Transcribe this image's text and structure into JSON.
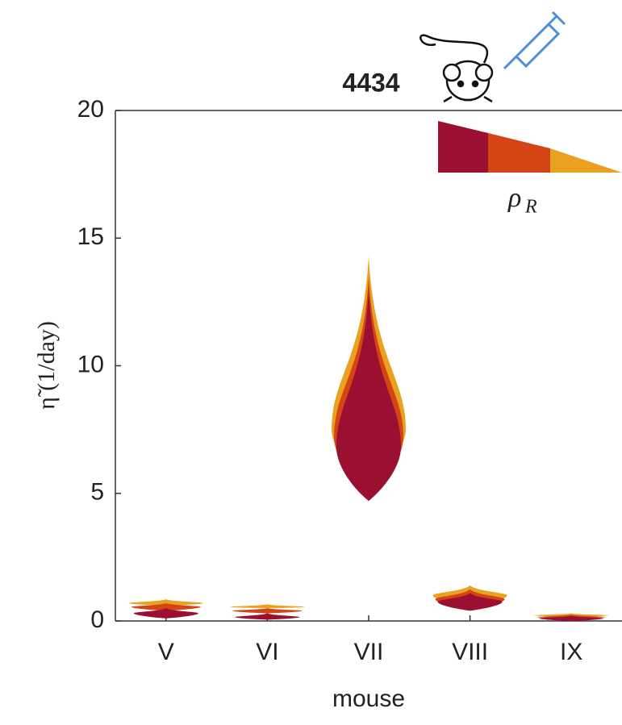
{
  "chart_data": {
    "type": "violin",
    "title": "4434",
    "categories": [
      "V",
      "VI",
      "VII",
      "VIII",
      "IX"
    ],
    "series": [
      {
        "color": "#e9a21f",
        "values": [
          0.7,
          0.55,
          7.5,
          1.0,
          0.22
        ],
        "low": [
          0.6,
          0.5,
          5.5,
          0.6,
          0.15
        ],
        "high": [
          0.85,
          0.65,
          14.3,
          1.4,
          0.3
        ]
      },
      {
        "color": "#d54415",
        "values": [
          0.55,
          0.4,
          7.2,
          0.85,
          0.15
        ],
        "low": [
          0.4,
          0.3,
          5.0,
          0.5,
          0.1
        ],
        "high": [
          0.7,
          0.5,
          13.5,
          1.25,
          0.25
        ]
      },
      {
        "color": "#9b1030",
        "values": [
          0.3,
          0.15,
          6.8,
          0.75,
          0.1
        ],
        "low": [
          0.1,
          0.05,
          4.7,
          0.4,
          0.0
        ],
        "high": [
          0.5,
          0.3,
          13.0,
          1.1,
          0.2
        ]
      }
    ],
    "ylim": [
      0,
      20
    ],
    "yticks": [
      0,
      5,
      10,
      15,
      20
    ],
    "ylabel": "η̃ (1/day)",
    "xlabel": "mouse",
    "legend_symbol": "ρ",
    "legend_subscript": "R"
  }
}
